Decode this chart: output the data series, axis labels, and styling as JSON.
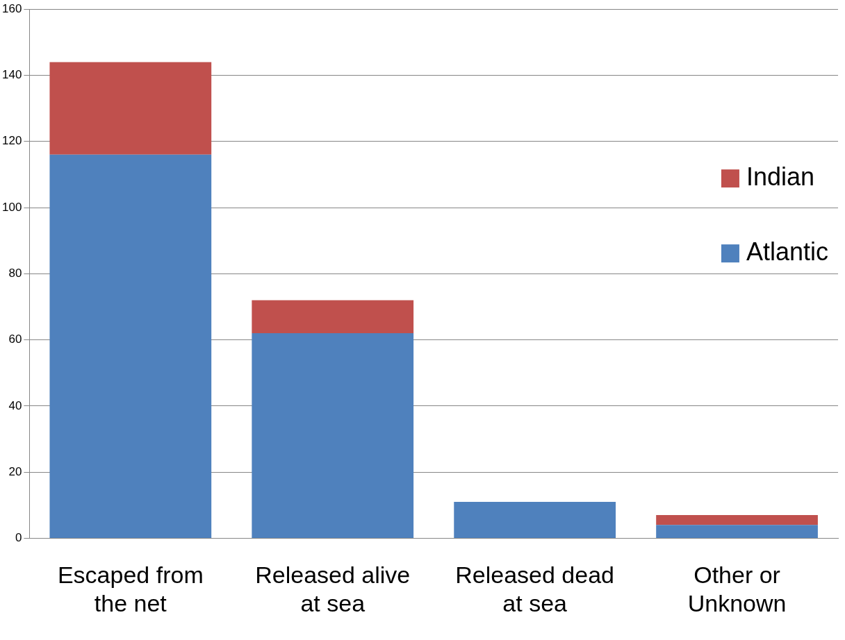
{
  "chart_data": {
    "type": "bar",
    "stacked": true,
    "categories": [
      "Escaped from the net",
      "Released alive at sea",
      "Released dead at sea",
      "Other or Unknown"
    ],
    "series": [
      {
        "name": "Atlantic",
        "color": "#4f81bd",
        "values": [
          116,
          62,
          11,
          4
        ]
      },
      {
        "name": "Indian",
        "color": "#c0504d",
        "values": [
          28,
          10,
          0,
          3
        ]
      }
    ],
    "ylim": [
      0,
      160
    ],
    "yticks": [
      0,
      20,
      40,
      60,
      80,
      100,
      120,
      140,
      160
    ],
    "grid": "y",
    "legend": "right"
  }
}
